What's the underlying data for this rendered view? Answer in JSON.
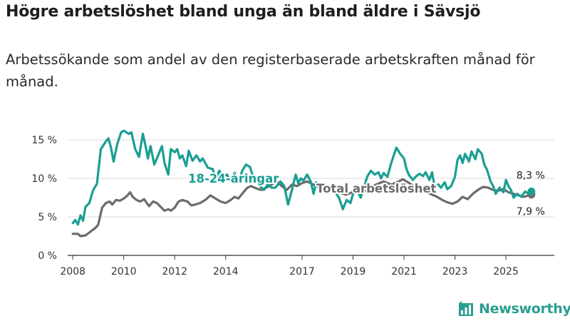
{
  "header": {
    "title": "Högre arbetslöshet bland unga än bland äldre i Sävsjö",
    "subtitle": "Arbetssökande som andel av den registerbaserade arbetskraften månad för månad."
  },
  "brand": {
    "name": "Newsworthy",
    "icon": "newsworthy-logo-icon"
  },
  "colors": {
    "youth": "#1a9e93",
    "total": "#6b6b6b",
    "grid": "#dcdcdc",
    "axis": "#333333",
    "brand": "#2a9d8f"
  },
  "chart_data": {
    "type": "line",
    "title": "Högre arbetslöshet bland unga än bland äldre i Sävsjö",
    "subtitle": "Arbetssökande som andel av den registerbaserade arbetskraften månad för månad.",
    "xlabel": "",
    "ylabel": "",
    "xlim": [
      2007.8,
      2026.9
    ],
    "ylim": [
      0,
      16.5
    ],
    "grid": true,
    "y_ticks": [
      0,
      5,
      10,
      15
    ],
    "y_tick_labels": [
      "0 %",
      "5 %",
      "10 %",
      "15 %"
    ],
    "x_ticks": [
      2008,
      2010,
      2012,
      2014,
      2017,
      2019,
      2021,
      2023,
      2025
    ],
    "x_tick_labels": [
      "2008",
      "2010",
      "2012",
      "2014",
      "2017",
      "2019",
      "2021",
      "2023",
      "2025"
    ],
    "series": [
      {
        "name": "18-24-åringar",
        "label": "18-24-åringar",
        "end_label": "8,3 %",
        "points": [
          [
            2008.0,
            4.2
          ],
          [
            2008.1,
            4.6
          ],
          [
            2008.2,
            4.0
          ],
          [
            2008.3,
            5.2
          ],
          [
            2008.4,
            4.5
          ],
          [
            2008.5,
            6.3
          ],
          [
            2008.65,
            6.8
          ],
          [
            2008.8,
            8.5
          ],
          [
            2008.95,
            9.3
          ],
          [
            2009.1,
            13.8
          ],
          [
            2009.3,
            14.8
          ],
          [
            2009.4,
            15.2
          ],
          [
            2009.5,
            14.0
          ],
          [
            2009.6,
            12.2
          ],
          [
            2009.75,
            14.5
          ],
          [
            2009.9,
            16.0
          ],
          [
            2010.0,
            16.2
          ],
          [
            2010.2,
            15.8
          ],
          [
            2010.3,
            16.0
          ],
          [
            2010.45,
            13.8
          ],
          [
            2010.6,
            12.8
          ],
          [
            2010.75,
            15.8
          ],
          [
            2010.85,
            14.3
          ],
          [
            2010.95,
            12.6
          ],
          [
            2011.05,
            14.2
          ],
          [
            2011.2,
            11.8
          ],
          [
            2011.35,
            13.0
          ],
          [
            2011.5,
            14.2
          ],
          [
            2011.6,
            12.0
          ],
          [
            2011.75,
            10.5
          ],
          [
            2011.85,
            13.8
          ],
          [
            2012.0,
            13.4
          ],
          [
            2012.1,
            13.8
          ],
          [
            2012.2,
            12.6
          ],
          [
            2012.3,
            13.0
          ],
          [
            2012.45,
            11.6
          ],
          [
            2012.55,
            13.6
          ],
          [
            2012.7,
            12.3
          ],
          [
            2012.85,
            13.0
          ],
          [
            2013.0,
            12.2
          ],
          [
            2013.1,
            12.6
          ],
          [
            2013.3,
            11.4
          ],
          [
            2013.5,
            11.2
          ],
          [
            2013.6,
            9.8
          ],
          [
            2013.75,
            11.0
          ],
          [
            2013.9,
            10.2
          ],
          [
            2014.05,
            10.5
          ],
          [
            2014.2,
            9.6
          ],
          [
            2014.35,
            10.4
          ],
          [
            2014.5,
            9.5
          ],
          [
            2014.65,
            11.0
          ],
          [
            2014.8,
            11.8
          ],
          [
            2014.95,
            11.5
          ],
          [
            2015.05,
            10.5
          ],
          [
            2015.2,
            9.8
          ],
          [
            2015.35,
            9.0
          ],
          [
            2015.5,
            8.5
          ],
          [
            2015.65,
            9.2
          ],
          [
            2015.8,
            8.8
          ],
          [
            2015.95,
            8.8
          ],
          [
            2016.05,
            9.2
          ],
          [
            2016.15,
            9.6
          ],
          [
            2016.3,
            9.0
          ],
          [
            2016.45,
            6.6
          ],
          [
            2016.6,
            8.5
          ],
          [
            2016.75,
            10.5
          ],
          [
            2016.85,
            9.4
          ],
          [
            2016.95,
            10.0
          ],
          [
            2017.05,
            9.7
          ],
          [
            2017.2,
            10.5
          ],
          [
            2017.35,
            9.5
          ],
          [
            2017.45,
            8.0
          ],
          [
            2017.55,
            9.5
          ],
          [
            2017.7,
            8.5
          ],
          [
            2017.85,
            9.0
          ],
          [
            2018.0,
            8.4
          ],
          [
            2018.15,
            9.2
          ],
          [
            2018.3,
            8.2
          ],
          [
            2018.45,
            7.5
          ],
          [
            2018.6,
            6.0
          ],
          [
            2018.75,
            7.2
          ],
          [
            2018.9,
            6.8
          ],
          [
            2019.0,
            8.0
          ],
          [
            2019.15,
            8.5
          ],
          [
            2019.3,
            7.5
          ],
          [
            2019.45,
            9.0
          ],
          [
            2019.55,
            10.2
          ],
          [
            2019.7,
            11.0
          ],
          [
            2019.85,
            10.5
          ],
          [
            2020.0,
            10.8
          ],
          [
            2020.1,
            10.0
          ],
          [
            2020.2,
            10.7
          ],
          [
            2020.35,
            10.2
          ],
          [
            2020.5,
            12.0
          ],
          [
            2020.6,
            13.0
          ],
          [
            2020.7,
            14.0
          ],
          [
            2020.85,
            13.2
          ],
          [
            2021.0,
            12.6
          ],
          [
            2021.1,
            11.2
          ],
          [
            2021.2,
            10.4
          ],
          [
            2021.35,
            9.8
          ],
          [
            2021.45,
            10.2
          ],
          [
            2021.6,
            10.6
          ],
          [
            2021.75,
            10.3
          ],
          [
            2021.85,
            10.8
          ],
          [
            2022.0,
            9.8
          ],
          [
            2022.1,
            10.8
          ],
          [
            2022.2,
            9.0
          ],
          [
            2022.35,
            9.2
          ],
          [
            2022.45,
            8.8
          ],
          [
            2022.6,
            9.5
          ],
          [
            2022.7,
            8.6
          ],
          [
            2022.85,
            9.0
          ],
          [
            2023.0,
            10.2
          ],
          [
            2023.1,
            12.4
          ],
          [
            2023.2,
            13.0
          ],
          [
            2023.3,
            12.0
          ],
          [
            2023.4,
            13.2
          ],
          [
            2023.55,
            12.2
          ],
          [
            2023.65,
            13.5
          ],
          [
            2023.8,
            12.5
          ],
          [
            2023.9,
            13.8
          ],
          [
            2024.05,
            13.2
          ],
          [
            2024.15,
            11.8
          ],
          [
            2024.25,
            11.2
          ],
          [
            2024.4,
            9.6
          ],
          [
            2024.5,
            9.0
          ],
          [
            2024.6,
            8.0
          ],
          [
            2024.75,
            8.8
          ],
          [
            2024.9,
            8.2
          ],
          [
            2025.0,
            9.8
          ],
          [
            2025.1,
            9.0
          ],
          [
            2025.2,
            8.5
          ],
          [
            2025.3,
            7.5
          ],
          [
            2025.45,
            8.0
          ],
          [
            2025.6,
            7.6
          ],
          [
            2025.75,
            8.3
          ],
          [
            2025.9,
            8.0
          ],
          [
            2026.0,
            8.3
          ]
        ]
      },
      {
        "name": "Total arbetslöshet",
        "label": "Total arbetslöshet",
        "end_label": "7,9 %",
        "points": [
          [
            2008.0,
            2.8
          ],
          [
            2008.2,
            2.8
          ],
          [
            2008.3,
            2.5
          ],
          [
            2008.5,
            2.6
          ],
          [
            2008.7,
            3.1
          ],
          [
            2008.9,
            3.6
          ],
          [
            2009.0,
            4.0
          ],
          [
            2009.15,
            6.2
          ],
          [
            2009.3,
            6.8
          ],
          [
            2009.45,
            7.0
          ],
          [
            2009.55,
            6.6
          ],
          [
            2009.7,
            7.2
          ],
          [
            2009.85,
            7.1
          ],
          [
            2010.0,
            7.4
          ],
          [
            2010.15,
            7.8
          ],
          [
            2010.25,
            8.2
          ],
          [
            2010.35,
            7.6
          ],
          [
            2010.5,
            7.2
          ],
          [
            2010.65,
            7.0
          ],
          [
            2010.8,
            7.3
          ],
          [
            2010.9,
            6.8
          ],
          [
            2011.0,
            6.4
          ],
          [
            2011.15,
            7.0
          ],
          [
            2011.3,
            6.8
          ],
          [
            2011.45,
            6.3
          ],
          [
            2011.6,
            5.8
          ],
          [
            2011.75,
            6.0
          ],
          [
            2011.85,
            5.8
          ],
          [
            2012.0,
            6.2
          ],
          [
            2012.15,
            7.0
          ],
          [
            2012.3,
            7.2
          ],
          [
            2012.5,
            7.0
          ],
          [
            2012.65,
            6.5
          ],
          [
            2012.8,
            6.6
          ],
          [
            2013.0,
            6.8
          ],
          [
            2013.2,
            7.2
          ],
          [
            2013.4,
            7.8
          ],
          [
            2013.6,
            7.4
          ],
          [
            2013.8,
            7.0
          ],
          [
            2014.0,
            6.8
          ],
          [
            2014.2,
            7.2
          ],
          [
            2014.35,
            7.6
          ],
          [
            2014.5,
            7.4
          ],
          [
            2014.7,
            8.2
          ],
          [
            2014.85,
            8.8
          ],
          [
            2015.0,
            9.0
          ],
          [
            2015.2,
            8.7
          ],
          [
            2015.4,
            8.5
          ],
          [
            2015.6,
            8.8
          ],
          [
            2015.8,
            9.2
          ],
          [
            2016.0,
            9.6
          ],
          [
            2016.2,
            9.0
          ],
          [
            2016.4,
            8.5
          ],
          [
            2016.6,
            9.2
          ],
          [
            2016.8,
            9.0
          ],
          [
            2017.0,
            9.4
          ],
          [
            2017.2,
            9.6
          ],
          [
            2017.45,
            9.2
          ],
          [
            2017.7,
            8.8
          ],
          [
            2017.95,
            9.0
          ],
          [
            2018.2,
            8.6
          ],
          [
            2018.45,
            8.2
          ],
          [
            2018.7,
            7.9
          ],
          [
            2018.9,
            8.1
          ],
          [
            2019.1,
            8.4
          ],
          [
            2019.3,
            8.0
          ],
          [
            2019.6,
            8.6
          ],
          [
            2019.9,
            9.2
          ],
          [
            2020.2,
            9.6
          ],
          [
            2020.5,
            9.2
          ],
          [
            2020.8,
            9.6
          ],
          [
            2020.95,
            9.9
          ],
          [
            2021.1,
            9.6
          ],
          [
            2021.3,
            9.2
          ],
          [
            2021.5,
            8.8
          ],
          [
            2021.7,
            8.6
          ],
          [
            2021.9,
            8.2
          ],
          [
            2022.1,
            7.9
          ],
          [
            2022.3,
            7.6
          ],
          [
            2022.5,
            7.2
          ],
          [
            2022.7,
            6.9
          ],
          [
            2022.9,
            6.7
          ],
          [
            2023.1,
            7.0
          ],
          [
            2023.3,
            7.6
          ],
          [
            2023.5,
            7.3
          ],
          [
            2023.7,
            8.0
          ],
          [
            2023.9,
            8.5
          ],
          [
            2024.1,
            8.9
          ],
          [
            2024.3,
            8.8
          ],
          [
            2024.5,
            8.5
          ],
          [
            2024.7,
            8.4
          ],
          [
            2024.9,
            8.6
          ],
          [
            2025.1,
            8.2
          ],
          [
            2025.3,
            8.0
          ],
          [
            2025.5,
            7.8
          ],
          [
            2025.7,
            7.6
          ],
          [
            2025.9,
            7.8
          ],
          [
            2026.0,
            7.9
          ]
        ]
      }
    ]
  }
}
